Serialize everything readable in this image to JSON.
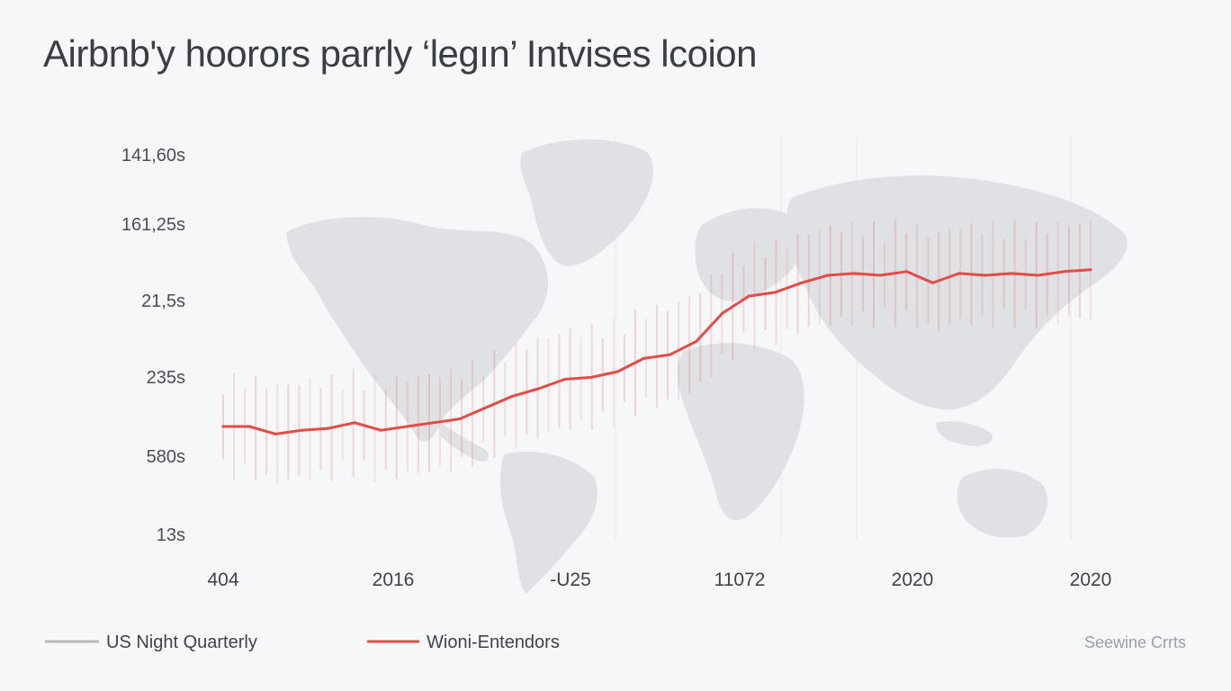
{
  "title": "Airbnb'y hoorors parrly ‘legın’ Intvises lcoion",
  "source": "Seewine Crrts",
  "colors": {
    "accent": "#e24c46",
    "map": "#dcdde0",
    "legend_gray": "#b7b9bd"
  },
  "chart_data": {
    "type": "line",
    "title": "Airbnb'y hoorors parrly ‘legın’ Intvises lcoion",
    "y_tick_labels": [
      "141,60s",
      "161,25s",
      "21,5s",
      "235s",
      "580s",
      "13s"
    ],
    "x_tick_labels": [
      "404",
      "2016",
      "-U25",
      "11072",
      "2020",
      "2020"
    ],
    "legend": [
      {
        "name": "US Night Quarterly",
        "color": "#b7b9bd"
      },
      {
        "name": "Wioni-Entendors",
        "color": "#e24c46"
      }
    ],
    "series": [
      {
        "name": "Wioni-Entendors",
        "color": "#e24c46",
        "values": [
          0.6,
          0.6,
          0.56,
          0.58,
          0.59,
          0.62,
          0.58,
          0.6,
          0.62,
          0.64,
          0.7,
          0.76,
          0.8,
          0.85,
          0.86,
          0.89,
          0.96,
          0.98,
          1.05,
          1.2,
          1.29,
          1.31,
          1.36,
          1.4,
          1.41,
          1.4,
          1.42,
          1.36,
          1.41,
          1.4,
          1.41,
          1.4,
          1.42,
          1.43
        ]
      }
    ],
    "grid": false,
    "legend_position": "bottom-left"
  }
}
